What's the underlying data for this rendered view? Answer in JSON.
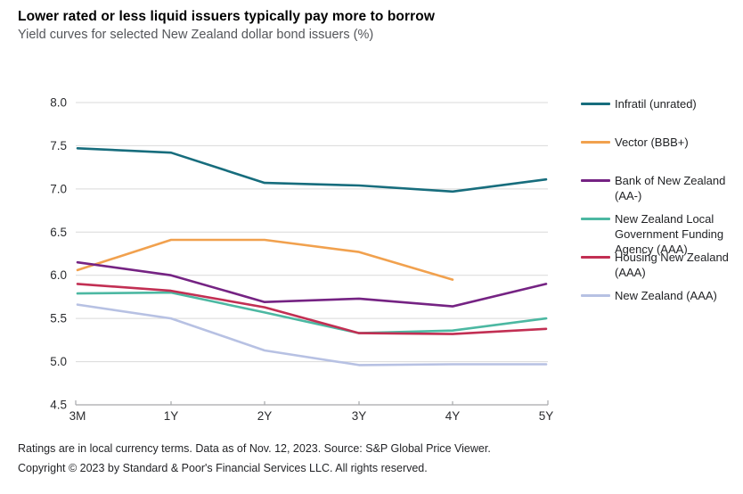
{
  "header": {
    "title": "Lower rated or less liquid issuers typically pay more to borrow",
    "subtitle": "Yield curves for selected New Zealand dollar bond issuers (%)"
  },
  "chart_data": {
    "type": "line",
    "categories": [
      "3M",
      "1Y",
      "2Y",
      "3Y",
      "4Y",
      "5Y"
    ],
    "series": [
      {
        "name": "Infratil (unrated)",
        "color": "#176d7d",
        "values": [
          7.47,
          7.42,
          7.07,
          7.04,
          6.97,
          7.11
        ]
      },
      {
        "name": "Vector (BBB+)",
        "color": "#f1a14e",
        "values": [
          6.06,
          6.41,
          6.41,
          6.27,
          5.95,
          null
        ]
      },
      {
        "name": "Bank of New Zealand (AA-)",
        "color": "#752383",
        "values": [
          6.15,
          6.0,
          5.69,
          5.73,
          5.64,
          5.9
        ]
      },
      {
        "name": "New Zealand Local Government Funding Agency (AAA)",
        "color": "#4cb8a2",
        "values": [
          5.79,
          5.8,
          5.57,
          5.33,
          5.36,
          5.5
        ]
      },
      {
        "name": "Housing New Zealand (AAA)",
        "color": "#c22f53",
        "values": [
          5.9,
          5.82,
          5.63,
          5.33,
          5.32,
          5.38
        ]
      },
      {
        "name": "New Zealand (AAA)",
        "color": "#b7c1e3",
        "values": [
          5.66,
          5.5,
          5.13,
          4.96,
          4.97,
          4.97
        ]
      }
    ],
    "title": "Lower rated or less liquid issuers typically pay more to borrow",
    "subtitle": "Yield curves for selected New Zealand dollar bond issuers (%)",
    "xlabel": "",
    "ylabel": "",
    "ylim": [
      4.5,
      8.0
    ],
    "ytick_step": 0.5,
    "grid": true,
    "legend_position": "right"
  },
  "style": {
    "gridline_color": "#d9d9d9",
    "axis_color": "#a7a8ab",
    "tick_label_color": "#2b2c2f"
  },
  "footer": {
    "line1": "Ratings are in local currency terms. Data as of Nov. 12, 2023. Source: S&P Global Price Viewer.",
    "line2": "Copyright © 2023 by Standard & Poor's Financial Services LLC. All rights reserved."
  }
}
